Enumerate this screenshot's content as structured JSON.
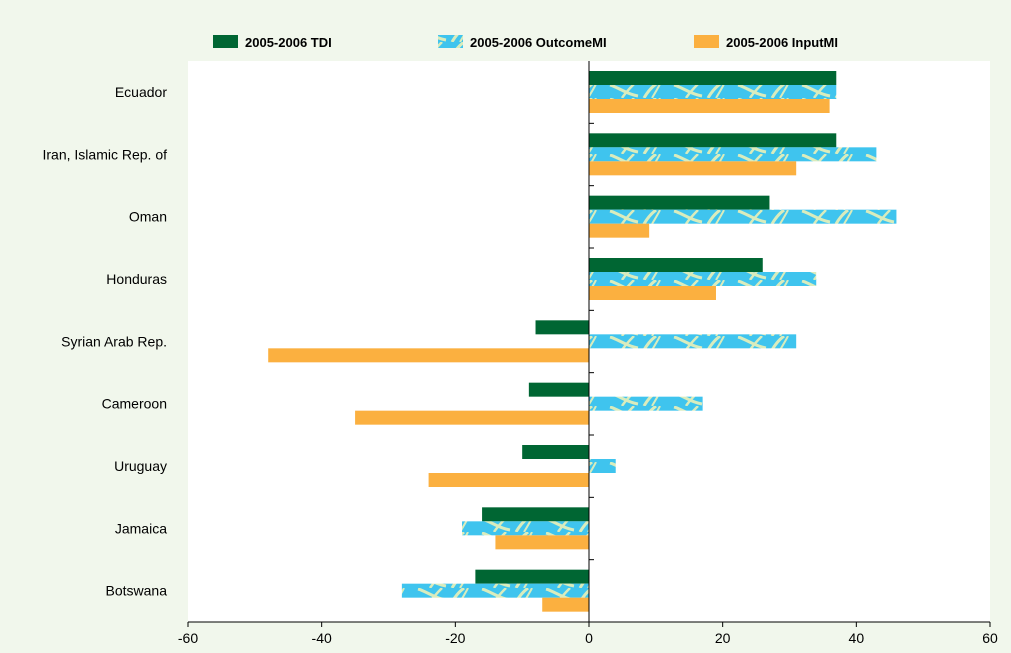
{
  "chart_data": {
    "type": "bar",
    "orientation": "horizontal",
    "categories": [
      "Ecuador",
      "Iran, Islamic Rep. of",
      "Oman",
      "Honduras",
      "Syrian Arab Rep.",
      "Cameroon",
      "Uruguay",
      "Jamaica",
      "Botswana"
    ],
    "series": [
      {
        "name": "2005-2006 TDI",
        "color": "#006633",
        "values": [
          37,
          37,
          27,
          26,
          -8,
          -9,
          -10,
          -16,
          -17
        ]
      },
      {
        "name": "2005-2006 OutcomeMI",
        "color": "#3fc4ee",
        "values": [
          37,
          43,
          46,
          34,
          31,
          17,
          4,
          -19,
          -28
        ]
      },
      {
        "name": "2005-2006 InputMI",
        "color": "#fbb040",
        "values": [
          36,
          31,
          9,
          19,
          -48,
          -35,
          -24,
          -14,
          -7
        ]
      }
    ],
    "xlim": [
      -60,
      60
    ],
    "xticks": [
      -60,
      -40,
      -20,
      0,
      20,
      40,
      60
    ],
    "grid": false,
    "legend_position": "top"
  }
}
